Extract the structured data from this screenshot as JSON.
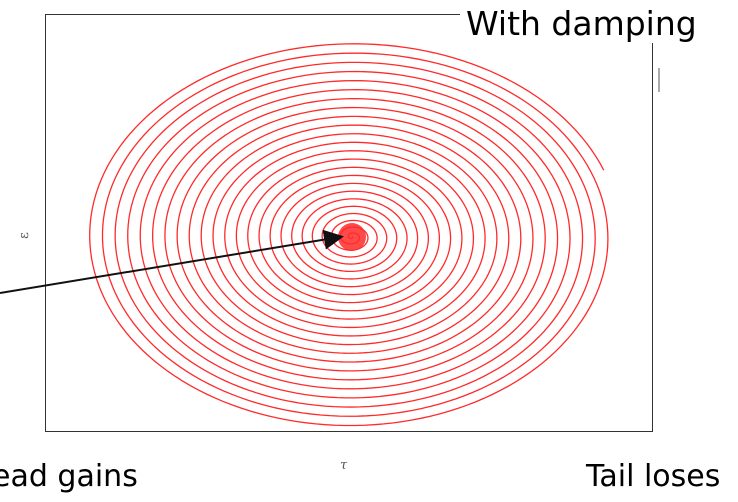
{
  "annotations": {
    "title": "With damping",
    "note_left": "ead gains",
    "note_right": "Tail loses"
  },
  "axes": {
    "y_symbol": "ε",
    "x_symbol": "τ"
  },
  "colors": {
    "spiral": "#ff2a2a",
    "frame": "#333333",
    "arrow": "#111111"
  }
}
